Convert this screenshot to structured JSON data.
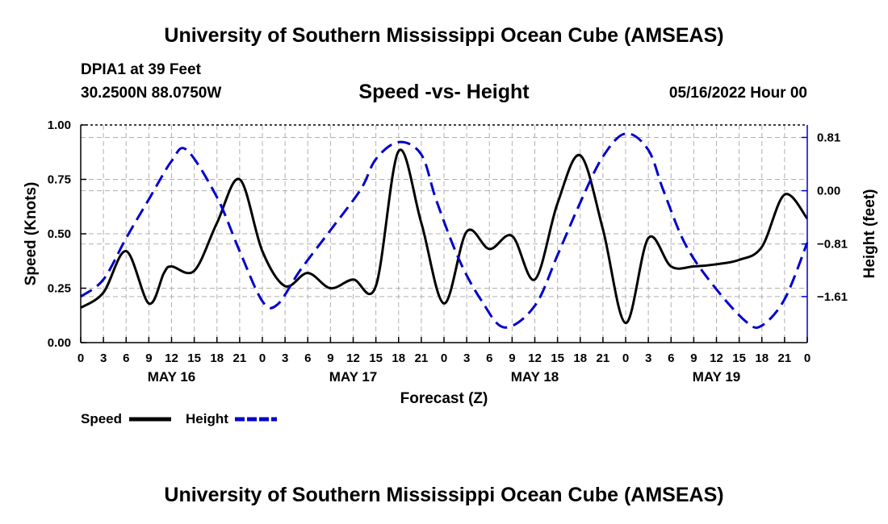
{
  "page": {
    "title_top": "University of Southern Mississippi Ocean Cube (AMSEAS)",
    "title_bottom": "University of Southern Mississippi Ocean Cube (AMSEAS)",
    "station": "DPIA1 at 39 Feet",
    "coords": "30.2500N  88.0750W",
    "datetime": "05/16/2022 Hour 00"
  },
  "chart_data": {
    "type": "line",
    "title": "Speed -vs- Height",
    "xlabel": "Forecast (Z)",
    "ylabel": "Speed (Knots)",
    "ylabel_right": "Height (feet)",
    "xlim": [
      0,
      96
    ],
    "ylim": [
      0,
      1.0
    ],
    "ylim_right": [
      -2.31,
      1.0
    ],
    "grid": true,
    "x_ticks": [
      0,
      3,
      6,
      9,
      12,
      15,
      18,
      21,
      24,
      27,
      30,
      33,
      36,
      39,
      42,
      45,
      48,
      51,
      54,
      57,
      60,
      63,
      66,
      69,
      72,
      75,
      78,
      81,
      84,
      87,
      90,
      93,
      96
    ],
    "x_tick_labels": [
      "0",
      "3",
      "6",
      "9",
      "12",
      "15",
      "18",
      "21",
      "0",
      "3",
      "6",
      "9",
      "12",
      "15",
      "18",
      "21",
      "0",
      "3",
      "6",
      "9",
      "12",
      "15",
      "18",
      "21",
      "0",
      "3",
      "6",
      "9",
      "12",
      "15",
      "18",
      "21",
      "0"
    ],
    "y_ticks": [
      0.0,
      0.25,
      0.5,
      0.75,
      1.0
    ],
    "y_tick_labels": [
      "0.00",
      "0.25",
      "0.50",
      "0.75",
      "1.00"
    ],
    "y_right_ticks": [
      0.81,
      0.0,
      -0.81,
      -1.61
    ],
    "y_right_tick_labels": [
      "0.81",
      "0.00",
      "−0.81",
      "−1.61"
    ],
    "day_labels": [
      {
        "label": "MAY 16",
        "x": 12
      },
      {
        "label": "MAY 17",
        "x": 36
      },
      {
        "label": "MAY 18",
        "x": 60
      },
      {
        "label": "MAY 19",
        "x": 84
      }
    ],
    "legend": [
      {
        "name": "Speed",
        "color": "#000000",
        "style": "solid"
      },
      {
        "name": "Height",
        "color": "#0000cc",
        "style": "dashed"
      }
    ],
    "series": [
      {
        "name": "Speed",
        "axis": "left",
        "color": "#000000",
        "style": "solid",
        "x": [
          0,
          3,
          6,
          9,
          11,
          12,
          15,
          18,
          21,
          24,
          27,
          30,
          33,
          36,
          39,
          42,
          45,
          48,
          51,
          54,
          57,
          60,
          63,
          66,
          69,
          72,
          75,
          78,
          81,
          84,
          87,
          90,
          93,
          96
        ],
        "y": [
          0.16,
          0.23,
          0.42,
          0.18,
          0.32,
          0.35,
          0.33,
          0.55,
          0.75,
          0.42,
          0.26,
          0.32,
          0.25,
          0.29,
          0.26,
          0.88,
          0.55,
          0.18,
          0.51,
          0.43,
          0.49,
          0.29,
          0.64,
          0.86,
          0.52,
          0.09,
          0.48,
          0.35,
          0.35,
          0.36,
          0.38,
          0.44,
          0.68,
          0.57
        ]
      },
      {
        "name": "Height",
        "axis": "right",
        "color": "#0000cc",
        "style": "dashed",
        "x": [
          0,
          3,
          6,
          9,
          12,
          14,
          18,
          21,
          24,
          26,
          29,
          33,
          37,
          39,
          42,
          45,
          47,
          50,
          53,
          56,
          60,
          63,
          66,
          69,
          72,
          75,
          77,
          80,
          84,
          88,
          90,
          93,
          96
        ],
        "y": [
          -1.61,
          -1.35,
          -0.72,
          -0.13,
          0.45,
          0.62,
          -0.1,
          -0.92,
          -1.68,
          -1.73,
          -1.21,
          -0.6,
          0.02,
          0.48,
          0.74,
          0.55,
          -0.15,
          -1.05,
          -1.68,
          -2.08,
          -1.75,
          -0.98,
          -0.18,
          0.52,
          0.87,
          0.62,
          0.0,
          -0.84,
          -1.5,
          -2.0,
          -2.05,
          -1.65,
          -0.79
        ]
      }
    ]
  }
}
